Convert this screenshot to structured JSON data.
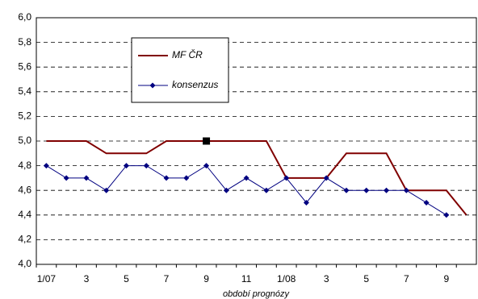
{
  "chart_data": {
    "type": "line",
    "x_label": "období prognózy",
    "categories": [
      "1/07",
      null,
      "3",
      null,
      "5",
      null,
      "7",
      null,
      "9",
      null,
      "11",
      null,
      "1/08",
      null,
      "3",
      null,
      "5",
      null,
      "7",
      null,
      "9",
      null
    ],
    "series": [
      {
        "name": "MF ČR",
        "color": "#800000",
        "marker": "none",
        "values": [
          5.0,
          5.0,
          5.0,
          4.9,
          4.9,
          4.9,
          5.0,
          5.0,
          5.0,
          5.0,
          5.0,
          5.0,
          4.7,
          4.7,
          4.7,
          4.9,
          4.9,
          4.9,
          4.6,
          4.6,
          4.6,
          4.4
        ]
      },
      {
        "name": "konsenzus",
        "color": "#000080",
        "marker": "diamond",
        "values": [
          4.8,
          4.7,
          4.7,
          4.6,
          4.8,
          4.8,
          4.7,
          4.7,
          4.8,
          4.6,
          4.7,
          4.6,
          4.7,
          4.5,
          4.7,
          4.6,
          4.6,
          4.6,
          4.6,
          4.5,
          4.4,
          null
        ]
      }
    ],
    "highlight": {
      "series": 0,
      "index": 8
    },
    "ylim": [
      4.0,
      6.0
    ],
    "yticks": [
      {
        "value": 4.0,
        "label": "4,0"
      },
      {
        "value": 4.2,
        "label": "4,2"
      },
      {
        "value": 4.4,
        "label": "4,4"
      },
      {
        "value": 4.6,
        "label": "4,6"
      },
      {
        "value": 4.8,
        "label": "4,8"
      },
      {
        "value": 5.0,
        "label": "5,0"
      },
      {
        "value": 5.2,
        "label": "5,2"
      },
      {
        "value": 5.4,
        "label": "5,4"
      },
      {
        "value": 5.6,
        "label": "5,6"
      },
      {
        "value": 5.8,
        "label": "5,8"
      },
      {
        "value": 6.0,
        "label": "6,0"
      }
    ],
    "grid": true,
    "legend": "upper-left"
  }
}
